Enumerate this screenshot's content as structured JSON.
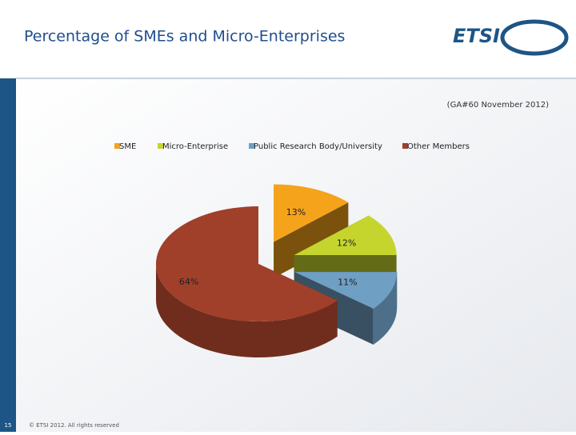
{
  "slide": {
    "title": "Percentage of SMEs and Micro-Enterprises",
    "logo": "ETSI",
    "number": "15",
    "footer": "© ETSI 2012. All rights reserved"
  },
  "chart_data": {
    "type": "pie",
    "subtitle": "(GA#60 November 2012)",
    "categories": [
      "SME",
      "Micro-Enterprise",
      "Public Research Body/University",
      "Other Members"
    ],
    "values": [
      13,
      12,
      11,
      64
    ],
    "value_labels": [
      "13%",
      "12%",
      "11%",
      "64%"
    ],
    "colors": [
      "#f5a31a",
      "#c5d52e",
      "#6f9fc3",
      "#a0402a"
    ],
    "legend": "top"
  }
}
